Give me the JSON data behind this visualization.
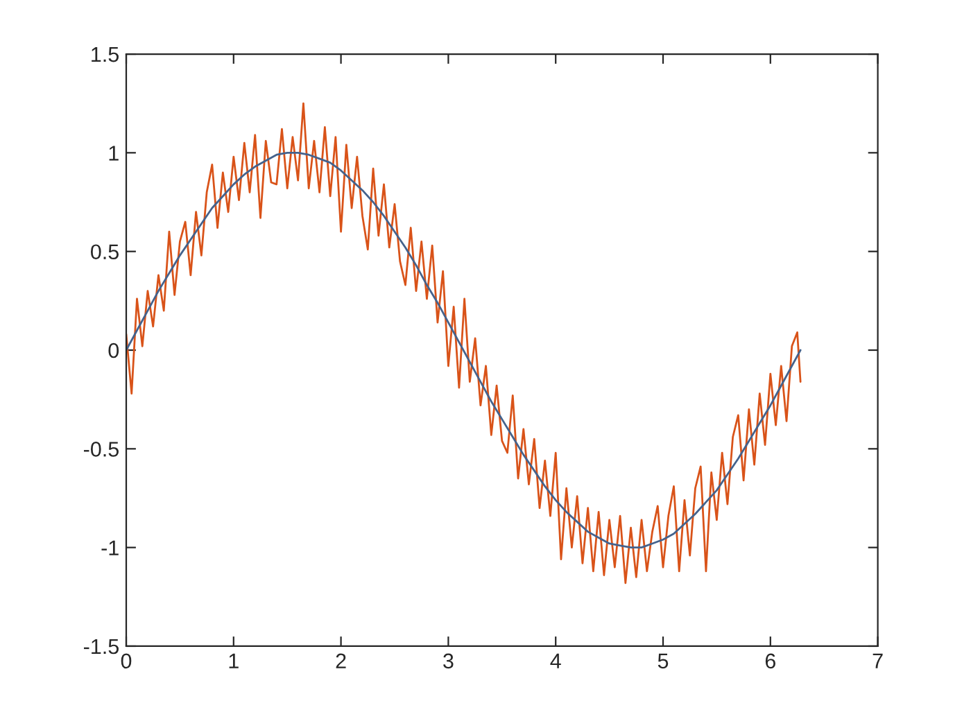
{
  "chart_data": {
    "type": "line",
    "xlim": [
      0,
      7
    ],
    "ylim": [
      -1.5,
      1.5
    ],
    "xticks": [
      0,
      1,
      2,
      3,
      4,
      5,
      6,
      7
    ],
    "yticks": [
      -1.5,
      -1,
      -0.5,
      0,
      0.5,
      1,
      1.5
    ],
    "series": [
      {
        "color": "#d95319",
        "x": [
          0,
          0.05,
          0.1,
          0.15,
          0.2,
          0.25,
          0.3,
          0.35,
          0.4,
          0.45,
          0.5,
          0.55,
          0.6,
          0.65,
          0.7,
          0.75,
          0.8,
          0.85,
          0.9,
          0.95,
          1,
          1.05,
          1.1,
          1.15,
          1.2,
          1.25,
          1.3,
          1.35,
          1.4,
          1.45,
          1.5,
          1.55,
          1.6,
          1.65,
          1.7,
          1.75,
          1.8,
          1.85,
          1.9,
          1.95,
          2,
          2.05,
          2.1,
          2.15,
          2.2,
          2.25,
          2.3,
          2.35,
          2.4,
          2.45,
          2.5,
          2.55,
          2.6,
          2.65,
          2.7,
          2.75,
          2.8,
          2.85,
          2.9,
          2.95,
          3,
          3.05,
          3.1,
          3.15,
          3.2,
          3.25,
          3.3,
          3.35,
          3.4,
          3.45,
          3.5,
          3.55,
          3.6,
          3.65,
          3.7,
          3.75,
          3.8,
          3.85,
          3.9,
          3.95,
          4,
          4.05,
          4.1,
          4.15,
          4.2,
          4.25,
          4.3,
          4.35,
          4.4,
          4.45,
          4.5,
          4.55,
          4.6,
          4.65,
          4.7,
          4.75,
          4.8,
          4.85,
          4.9,
          4.95,
          5,
          5.05,
          5.1,
          5.15,
          5.2,
          5.25,
          5.3,
          5.35,
          5.4,
          5.45,
          5.5,
          5.55,
          5.6,
          5.65,
          5.7,
          5.75,
          5.8,
          5.85,
          5.9,
          5.95,
          6,
          6.05,
          6.1,
          6.15,
          6.2,
          6.25,
          6.28
        ],
        "values": [
          0.08,
          -0.22,
          0.26,
          0.02,
          0.3,
          0.12,
          0.38,
          0.2,
          0.6,
          0.28,
          0.55,
          0.65,
          0.38,
          0.7,
          0.48,
          0.8,
          0.94,
          0.62,
          0.9,
          0.7,
          0.98,
          0.76,
          1.05,
          0.8,
          1.09,
          0.67,
          1.06,
          0.85,
          0.84,
          1.12,
          0.82,
          1.08,
          0.86,
          1.25,
          0.82,
          1.06,
          0.8,
          1.13,
          0.78,
          1.08,
          0.6,
          1.04,
          0.72,
          0.98,
          0.68,
          0.51,
          0.92,
          0.58,
          0.84,
          0.52,
          0.74,
          0.45,
          0.33,
          0.62,
          0.3,
          0.55,
          0.26,
          0.53,
          0.14,
          0.4,
          -0.08,
          0.22,
          -0.19,
          0.26,
          -0.16,
          0.06,
          -0.28,
          -0.08,
          -0.43,
          -0.18,
          -0.46,
          -0.52,
          -0.23,
          -0.65,
          -0.4,
          -0.68,
          -0.45,
          -0.8,
          -0.56,
          -0.84,
          -0.52,
          -1.06,
          -0.7,
          -1.0,
          -0.74,
          -1.08,
          -0.8,
          -1.12,
          -0.82,
          -1.14,
          -0.86,
          -1.1,
          -0.84,
          -1.18,
          -0.9,
          -1.15,
          -0.86,
          -1.12,
          -0.92,
          -0.79,
          -1.1,
          -0.84,
          -0.69,
          -1.12,
          -0.76,
          -1.04,
          -0.7,
          -0.59,
          -1.12,
          -0.62,
          -0.86,
          -0.52,
          -0.78,
          -0.44,
          -0.33,
          -0.66,
          -0.3,
          -0.58,
          -0.22,
          -0.48,
          -0.12,
          -0.38,
          -0.08,
          -0.36,
          0.02,
          0.09,
          -0.16
        ]
      },
      {
        "color": "#44628c",
        "x": [
          0,
          0.1,
          0.2,
          0.3,
          0.4,
          0.5,
          0.6,
          0.7,
          0.8,
          0.9,
          1,
          1.1,
          1.2,
          1.3,
          1.4,
          1.5,
          1.6,
          1.7,
          1.8,
          1.9,
          2,
          2.1,
          2.2,
          2.3,
          2.4,
          2.5,
          2.6,
          2.7,
          2.8,
          2.9,
          3,
          3.1,
          3.2,
          3.3,
          3.4,
          3.5,
          3.6,
          3.7,
          3.8,
          3.9,
          4,
          4.1,
          4.2,
          4.3,
          4.4,
          4.5,
          4.6,
          4.7,
          4.8,
          4.9,
          5,
          5.1,
          5.2,
          5.3,
          5.4,
          5.5,
          5.6,
          5.7,
          5.8,
          5.9,
          6,
          6.1,
          6.2,
          6.28
        ],
        "values": [
          0,
          0.1,
          0.2,
          0.3,
          0.39,
          0.48,
          0.56,
          0.64,
          0.72,
          0.78,
          0.84,
          0.89,
          0.93,
          0.96,
          0.99,
          1.0,
          1.0,
          0.99,
          0.97,
          0.95,
          0.91,
          0.86,
          0.81,
          0.75,
          0.68,
          0.6,
          0.52,
          0.43,
          0.33,
          0.24,
          0.14,
          0.04,
          -0.06,
          -0.16,
          -0.26,
          -0.35,
          -0.44,
          -0.53,
          -0.61,
          -0.69,
          -0.76,
          -0.82,
          -0.87,
          -0.92,
          -0.95,
          -0.98,
          -0.99,
          -1.0,
          -1.0,
          -0.98,
          -0.96,
          -0.93,
          -0.88,
          -0.83,
          -0.77,
          -0.71,
          -0.63,
          -0.55,
          -0.46,
          -0.37,
          -0.28,
          -0.18,
          -0.08,
          0
        ]
      }
    ]
  }
}
